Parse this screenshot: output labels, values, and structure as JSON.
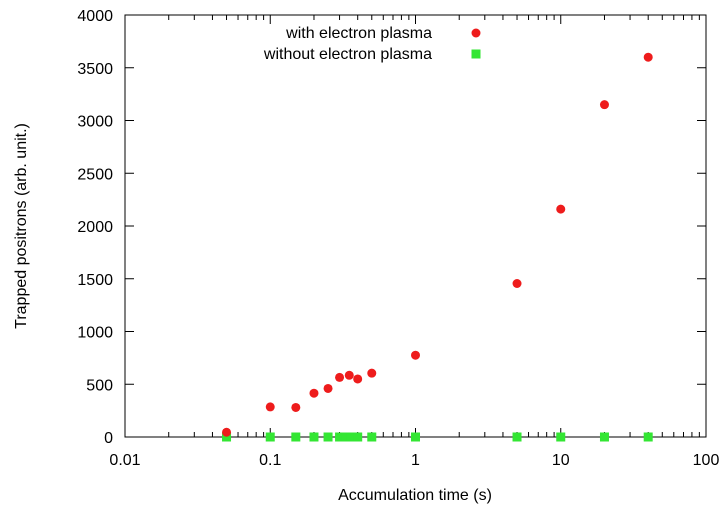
{
  "chart_data": {
    "type": "scatter",
    "xlabel": "Accumulation time (s)",
    "ylabel": "Trapped positrons (arb. unit.)",
    "xscale": "log",
    "xlim": [
      0.01,
      100
    ],
    "ylim": [
      0,
      4000
    ],
    "x_tick_labels": [
      "0.01",
      "0.1",
      "1",
      "10",
      "100"
    ],
    "y_tick_labels": [
      "0",
      "500",
      "1000",
      "1500",
      "2000",
      "2500",
      "3000",
      "3500",
      "4000"
    ],
    "legend_position": "top-left",
    "grid": false,
    "series": [
      {
        "name": "with electron plasma",
        "color": "#ee1c1c",
        "marker": "circle",
        "points": [
          {
            "x": 0.05,
            "y": 45
          },
          {
            "x": 0.1,
            "y": 285
          },
          {
            "x": 0.15,
            "y": 280
          },
          {
            "x": 0.2,
            "y": 415
          },
          {
            "x": 0.25,
            "y": 460
          },
          {
            "x": 0.3,
            "y": 565
          },
          {
            "x": 0.35,
            "y": 585
          },
          {
            "x": 0.4,
            "y": 550
          },
          {
            "x": 0.5,
            "y": 605
          },
          {
            "x": 1,
            "y": 775
          },
          {
            "x": 5,
            "y": 1455
          },
          {
            "x": 10,
            "y": 2160
          },
          {
            "x": 20,
            "y": 3150
          },
          {
            "x": 40,
            "y": 3600
          }
        ]
      },
      {
        "name": "without electron plasma",
        "color": "#33e633",
        "marker": "square",
        "points": [
          {
            "x": 0.05,
            "y": 0
          },
          {
            "x": 0.1,
            "y": 0
          },
          {
            "x": 0.15,
            "y": 0
          },
          {
            "x": 0.2,
            "y": 0
          },
          {
            "x": 0.25,
            "y": 0
          },
          {
            "x": 0.3,
            "y": 0
          },
          {
            "x": 0.33,
            "y": 0
          },
          {
            "x": 0.36,
            "y": 0
          },
          {
            "x": 0.4,
            "y": 0
          },
          {
            "x": 0.5,
            "y": 0
          },
          {
            "x": 1,
            "y": 0
          },
          {
            "x": 5,
            "y": 0
          },
          {
            "x": 10,
            "y": 0
          },
          {
            "x": 20,
            "y": 0
          },
          {
            "x": 40,
            "y": 0
          }
        ]
      }
    ]
  }
}
